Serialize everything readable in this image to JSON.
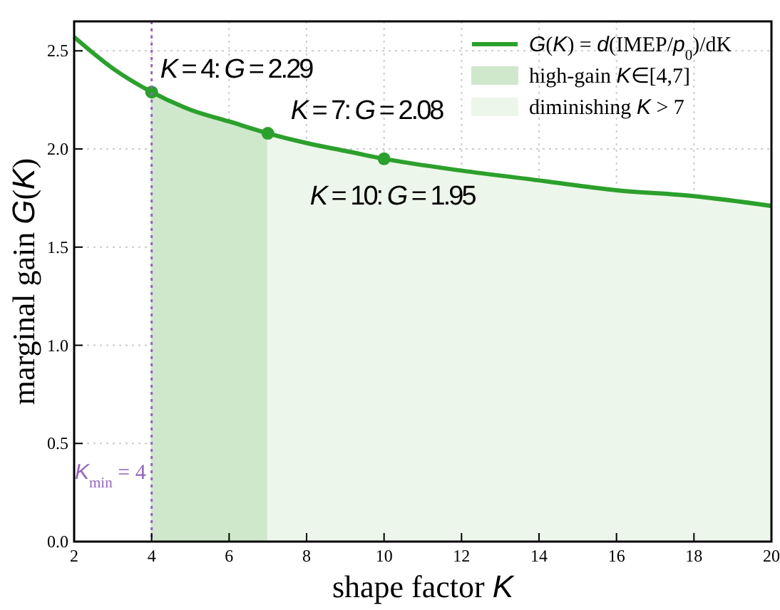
{
  "chart_data": {
    "type": "line",
    "xlabel": "shape factor K",
    "ylabel": "marginal gain G(K)",
    "xlim": [
      2,
      20
    ],
    "ylim": [
      0,
      2.65
    ],
    "xticks": [
      2,
      4,
      6,
      8,
      10,
      12,
      14,
      16,
      18,
      20
    ],
    "yticks": [
      {
        "value": 0,
        "label": "0.0"
      },
      {
        "value": 0.5,
        "label": "0.5"
      },
      {
        "value": 1,
        "label": "1.0"
      },
      {
        "value": 1.5,
        "label": "1.5"
      },
      {
        "value": 2,
        "label": "2.0"
      },
      {
        "value": 2.5,
        "label": "2.5"
      }
    ],
    "grid": true,
    "legend": "top right",
    "line_style": "solid",
    "series": [
      {
        "type": "line",
        "name": "G(K) = d(IMEP/p$_{0}$)/dK",
        "color": "#2ca02c",
        "marker": "none",
        "x": [
          2,
          3,
          4,
          5,
          6,
          7,
          8,
          9,
          10,
          12,
          14,
          16,
          18,
          20
        ],
        "values": [
          2.57,
          2.41,
          2.29,
          2.2,
          2.14,
          2.08,
          2.03,
          1.99,
          1.95,
          1.89,
          1.84,
          1.79,
          1.76,
          1.71
        ]
      },
      {
        "type": "area",
        "name": "high-gain K∈[4,7]",
        "color": "#cfe8cc",
        "x": [
          4,
          5,
          6,
          7
        ],
        "values": [
          2.29,
          2.2,
          2.14,
          2.08
        ]
      },
      {
        "type": "area",
        "name": "diminishing K > 7",
        "color": "#edf6ea",
        "x": [
          7,
          8,
          9,
          10,
          12,
          14,
          16,
          18,
          20
        ],
        "values": [
          2.08,
          2.03,
          1.99,
          1.95,
          1.89,
          1.84,
          1.79,
          1.76,
          1.71
        ]
      },
      {
        "type": "scatter",
        "color": "#2ca02c",
        "marker": "circle",
        "x": [
          4,
          7,
          10
        ],
        "values": [
          2.29,
          2.08,
          1.95
        ]
      }
    ],
    "ref_lines": [
      {
        "axis": "x",
        "value": 4,
        "label": "K$_{min}$ = 4",
        "color": "#9467bd",
        "line_style": "dotted"
      }
    ],
    "annotations": [
      {
        "text": "K = 4: G = 2.29",
        "x": 4,
        "y": 2.29
      },
      {
        "text": "K = 7: G = 2.08",
        "x": 7,
        "y": 2.08
      },
      {
        "text": "K = 10: G = 1.95",
        "x": 10,
        "y": 1.95
      }
    ]
  }
}
